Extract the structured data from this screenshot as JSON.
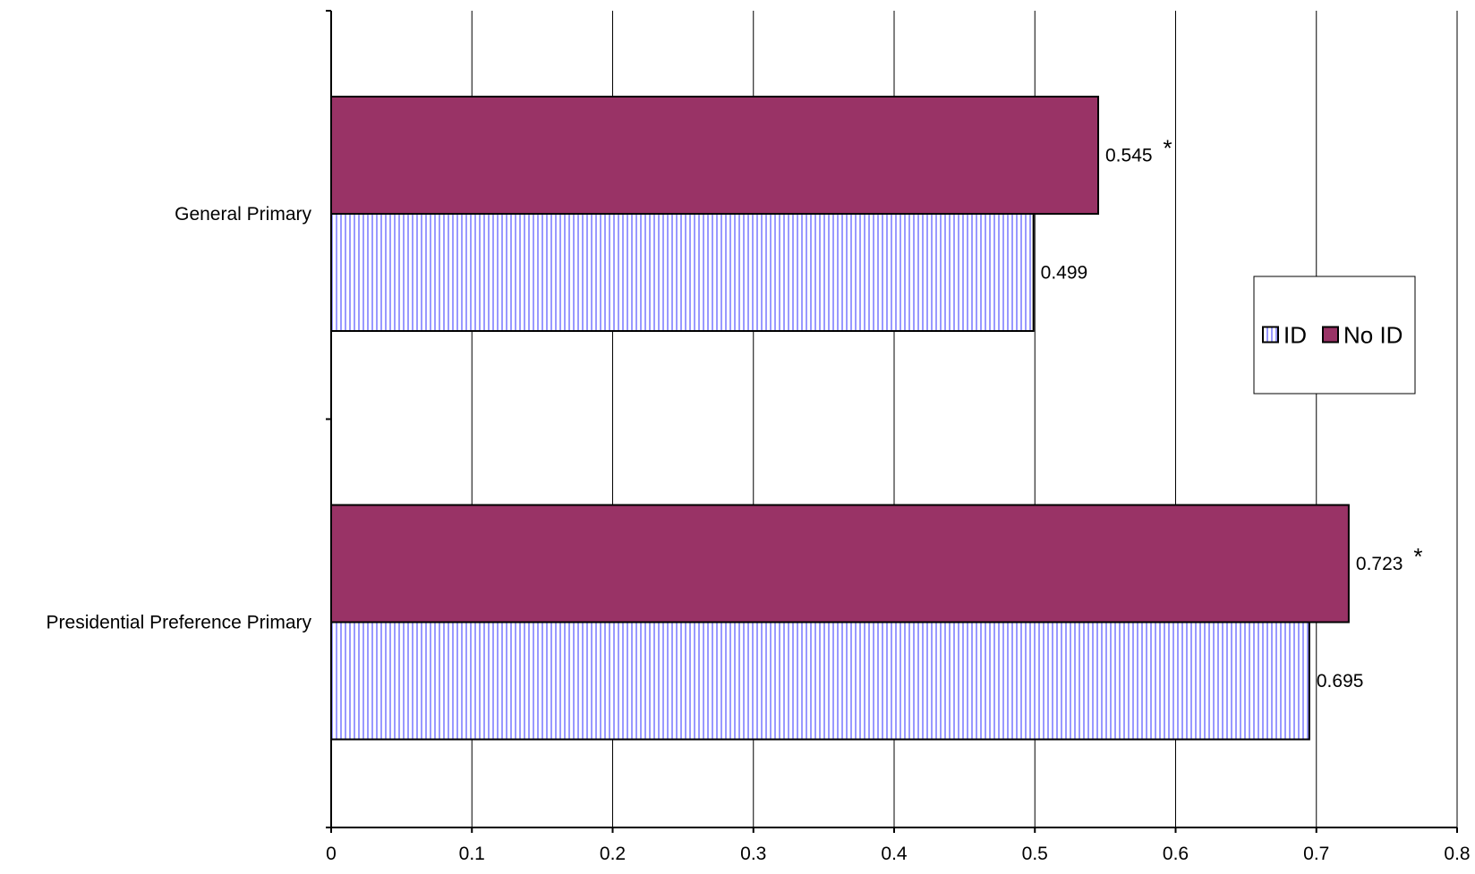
{
  "chart_data": {
    "type": "bar",
    "orientation": "horizontal",
    "title": "",
    "xlabel": "",
    "ylabel": "",
    "xlim": [
      0,
      0.8
    ],
    "xticks": [
      0,
      0.1,
      0.2,
      0.3,
      0.4,
      0.5,
      0.6,
      0.7,
      0.8
    ],
    "xtick_labels": [
      "0",
      "0.1",
      "0.2",
      "0.3",
      "0.4",
      "0.5",
      "0.6",
      "0.7",
      "0.8"
    ],
    "grid": "vertical",
    "legend_position": "right",
    "categories": [
      "General Primary",
      "Presidential Preference Primary"
    ],
    "series": [
      {
        "name": "ID",
        "pattern": "vertical-stripes",
        "color": "#9999ff",
        "values": [
          0.499,
          0.695
        ],
        "labels": [
          "0.499",
          "0.695"
        ],
        "markers": [
          "",
          ""
        ]
      },
      {
        "name": "No ID",
        "pattern": "solid",
        "color": "#993366",
        "values": [
          0.545,
          0.723
        ],
        "labels": [
          "0.545",
          "0.723"
        ],
        "markers": [
          "*",
          "*"
        ]
      }
    ]
  }
}
